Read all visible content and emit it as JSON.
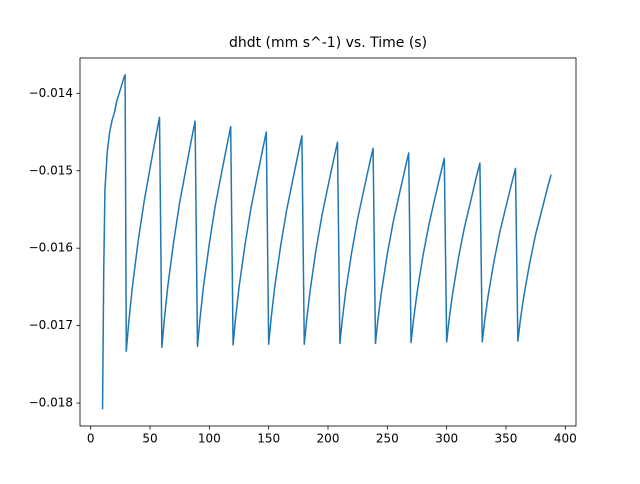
{
  "chart_data": {
    "type": "line",
    "title": "dhdt (mm s^-1) vs. Time (s)",
    "x": [
      10,
      11,
      12,
      14,
      16,
      18,
      20,
      22,
      25,
      28,
      29,
      30,
      32,
      35,
      40,
      45,
      50,
      55,
      58,
      60,
      62,
      65,
      70,
      75,
      80,
      85,
      88,
      90,
      92,
      95,
      100,
      105,
      110,
      115,
      118,
      120,
      122,
      125,
      130,
      135,
      140,
      145,
      148,
      150,
      152,
      155,
      160,
      165,
      170,
      175,
      178,
      180,
      182,
      185,
      190,
      195,
      200,
      205,
      208,
      210,
      212,
      215,
      220,
      225,
      230,
      235,
      238,
      240,
      242,
      245,
      250,
      255,
      260,
      265,
      268,
      270,
      272,
      275,
      280,
      285,
      290,
      295,
      298,
      300,
      302,
      305,
      310,
      315,
      320,
      325,
      328,
      330,
      332,
      335,
      340,
      345,
      350,
      355,
      358,
      360,
      362,
      365,
      370,
      375,
      380,
      385,
      388
    ],
    "series": [
      {
        "color": "#1f77b4",
        "values": [
          -0.01808,
          -0.0163,
          -0.01525,
          -0.01475,
          -0.0145,
          -0.01435,
          -0.01425,
          -0.0141,
          -0.01395,
          -0.0138,
          -0.01376,
          -0.01733,
          -0.01697,
          -0.01652,
          -0.01591,
          -0.0154,
          -0.01497,
          -0.01455,
          -0.01431,
          -0.01728,
          -0.01693,
          -0.01649,
          -0.01591,
          -0.01541,
          -0.015,
          -0.01459,
          -0.01436,
          -0.01727,
          -0.01693,
          -0.0165,
          -0.01594,
          -0.01545,
          -0.01505,
          -0.01466,
          -0.01443,
          -0.01725,
          -0.01692,
          -0.01651,
          -0.01596,
          -0.01549,
          -0.0151,
          -0.01472,
          -0.0145,
          -0.01724,
          -0.01692,
          -0.01651,
          -0.01598,
          -0.01552,
          -0.01514,
          -0.01477,
          -0.01455,
          -0.01724,
          -0.01693,
          -0.01654,
          -0.01601,
          -0.01557,
          -0.0152,
          -0.01484,
          -0.01463,
          -0.01723,
          -0.01693,
          -0.01655,
          -0.01605,
          -0.01562,
          -0.01526,
          -0.01491,
          -0.01471,
          -0.01723,
          -0.01693,
          -0.01657,
          -0.01607,
          -0.01566,
          -0.01531,
          -0.01497,
          -0.01477,
          -0.01722,
          -0.01693,
          -0.01658,
          -0.0161,
          -0.0157,
          -0.01536,
          -0.01503,
          -0.01484,
          -0.01721,
          -0.01693,
          -0.01659,
          -0.01612,
          -0.01573,
          -0.01541,
          -0.01508,
          -0.0149,
          -0.01721,
          -0.01694,
          -0.01661,
          -0.01616,
          -0.01578,
          -0.01546,
          -0.01515,
          -0.01497,
          -0.0172,
          -0.01694,
          -0.01662,
          -0.01619,
          -0.01582,
          -0.01552,
          -0.01522,
          -0.01505
        ]
      }
    ],
    "xlim": [
      -9,
      409
    ],
    "xticks": [
      0,
      50,
      100,
      150,
      200,
      250,
      300,
      350,
      400
    ],
    "ylim": [
      -0.018296,
      -0.013544
    ],
    "yticks": [
      {
        "value": -0.018,
        "label": "−0.018"
      },
      {
        "value": -0.017,
        "label": "−0.017"
      },
      {
        "value": -0.016,
        "label": "−0.016"
      },
      {
        "value": -0.015,
        "label": "−0.015"
      },
      {
        "value": -0.014,
        "label": "−0.014"
      }
    ],
    "grid": false
  }
}
